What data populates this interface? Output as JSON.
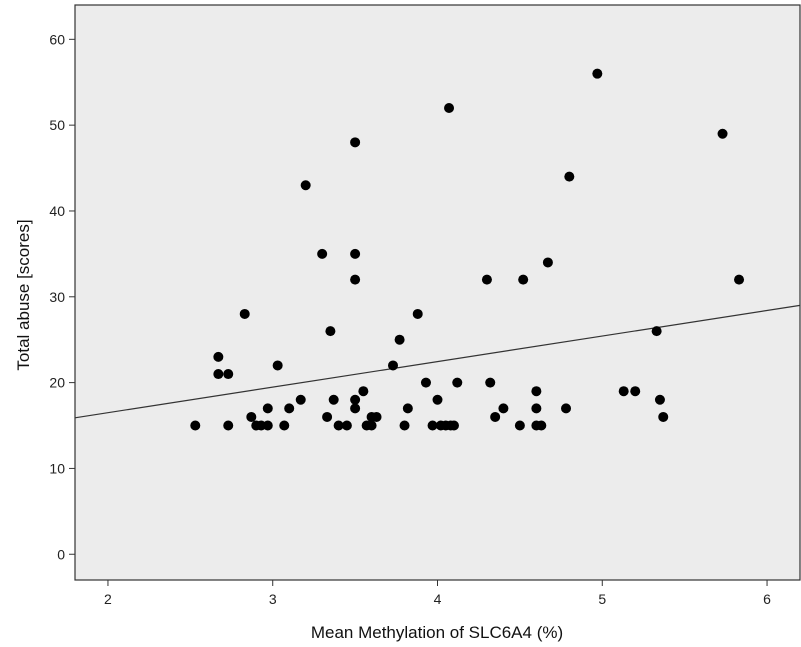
{
  "chart_data": {
    "type": "scatter",
    "title": "",
    "xlabel": "Mean Methylation of SLC6A4 (%)",
    "ylabel": "Total abuse [scores]",
    "xlim": [
      1.8,
      6.2
    ],
    "ylim": [
      -3,
      64
    ],
    "xticks": [
      2,
      3,
      4,
      5,
      6
    ],
    "yticks": [
      0,
      10,
      20,
      30,
      40,
      50,
      60
    ],
    "grid": false,
    "legend": "none",
    "plot_background": "#ececec",
    "point_color": "#000000",
    "points": [
      {
        "x": 2.53,
        "y": 15
      },
      {
        "x": 2.67,
        "y": 23
      },
      {
        "x": 2.67,
        "y": 21
      },
      {
        "x": 2.73,
        "y": 21
      },
      {
        "x": 2.73,
        "y": 15
      },
      {
        "x": 2.83,
        "y": 28
      },
      {
        "x": 2.87,
        "y": 16
      },
      {
        "x": 2.9,
        "y": 15
      },
      {
        "x": 2.93,
        "y": 15
      },
      {
        "x": 2.97,
        "y": 15
      },
      {
        "x": 2.97,
        "y": 17
      },
      {
        "x": 3.03,
        "y": 22
      },
      {
        "x": 3.07,
        "y": 15
      },
      {
        "x": 3.1,
        "y": 17
      },
      {
        "x": 3.17,
        "y": 18
      },
      {
        "x": 3.2,
        "y": 43
      },
      {
        "x": 3.3,
        "y": 35
      },
      {
        "x": 3.33,
        "y": 16
      },
      {
        "x": 3.35,
        "y": 26
      },
      {
        "x": 3.37,
        "y": 18
      },
      {
        "x": 3.4,
        "y": 15
      },
      {
        "x": 3.45,
        "y": 15
      },
      {
        "x": 3.5,
        "y": 48
      },
      {
        "x": 3.5,
        "y": 35
      },
      {
        "x": 3.5,
        "y": 32
      },
      {
        "x": 3.5,
        "y": 18
      },
      {
        "x": 3.5,
        "y": 17
      },
      {
        "x": 3.55,
        "y": 19
      },
      {
        "x": 3.57,
        "y": 15
      },
      {
        "x": 3.6,
        "y": 16
      },
      {
        "x": 3.6,
        "y": 15
      },
      {
        "x": 3.63,
        "y": 16
      },
      {
        "x": 3.73,
        "y": 22
      },
      {
        "x": 3.77,
        "y": 25
      },
      {
        "x": 3.8,
        "y": 15
      },
      {
        "x": 3.82,
        "y": 17
      },
      {
        "x": 3.88,
        "y": 28
      },
      {
        "x": 3.93,
        "y": 20
      },
      {
        "x": 3.97,
        "y": 15
      },
      {
        "x": 4.0,
        "y": 18
      },
      {
        "x": 4.02,
        "y": 15
      },
      {
        "x": 4.05,
        "y": 15
      },
      {
        "x": 4.07,
        "y": 52
      },
      {
        "x": 4.08,
        "y": 15
      },
      {
        "x": 4.1,
        "y": 15
      },
      {
        "x": 4.12,
        "y": 20
      },
      {
        "x": 4.3,
        "y": 32
      },
      {
        "x": 4.32,
        "y": 20
      },
      {
        "x": 4.35,
        "y": 16
      },
      {
        "x": 4.4,
        "y": 17
      },
      {
        "x": 4.5,
        "y": 15
      },
      {
        "x": 4.52,
        "y": 32
      },
      {
        "x": 4.6,
        "y": 19
      },
      {
        "x": 4.6,
        "y": 17
      },
      {
        "x": 4.6,
        "y": 15
      },
      {
        "x": 4.63,
        "y": 15
      },
      {
        "x": 4.67,
        "y": 34
      },
      {
        "x": 4.78,
        "y": 17
      },
      {
        "x": 4.8,
        "y": 44
      },
      {
        "x": 4.97,
        "y": 56
      },
      {
        "x": 5.13,
        "y": 19
      },
      {
        "x": 5.2,
        "y": 19
      },
      {
        "x": 5.33,
        "y": 26
      },
      {
        "x": 5.35,
        "y": 18
      },
      {
        "x": 5.37,
        "y": 16
      },
      {
        "x": 5.73,
        "y": 49
      },
      {
        "x": 5.83,
        "y": 32
      }
    ],
    "fit_line": {
      "x": [
        1.8,
        6.2
      ],
      "y": [
        15.9,
        29.0
      ]
    }
  }
}
